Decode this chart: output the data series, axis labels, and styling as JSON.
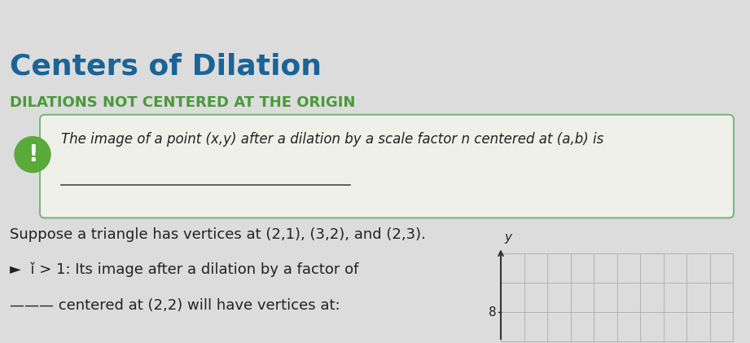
{
  "title": "Centers of Dilation",
  "subtitle": "DILATIONS NOT CENTERED AT THE ORIGIN",
  "title_color": "#1a6496",
  "subtitle_color": "#4a9a3a",
  "bg_color": "#dcdcdc",
  "box_bg": "#f0f0eb",
  "box_edge": "#7ab87a",
  "box_text": "The image of a point (x,y) after a dilation by a scale factor n centered at (a,b) is",
  "icon_color": "#5aaa3a",
  "text_color": "#222222",
  "body_text1": "Suppose a triangle has vertices at (2,1), (3,2), and (2,3).",
  "body_text2": "►  ǐ > 1: Its image after a dilation by a factor of",
  "body_text3": "——— centered at (2,2) will have vertices at:",
  "graph_y_label": "y",
  "graph_tick_8": "8",
  "top_bar_color": "#333333"
}
